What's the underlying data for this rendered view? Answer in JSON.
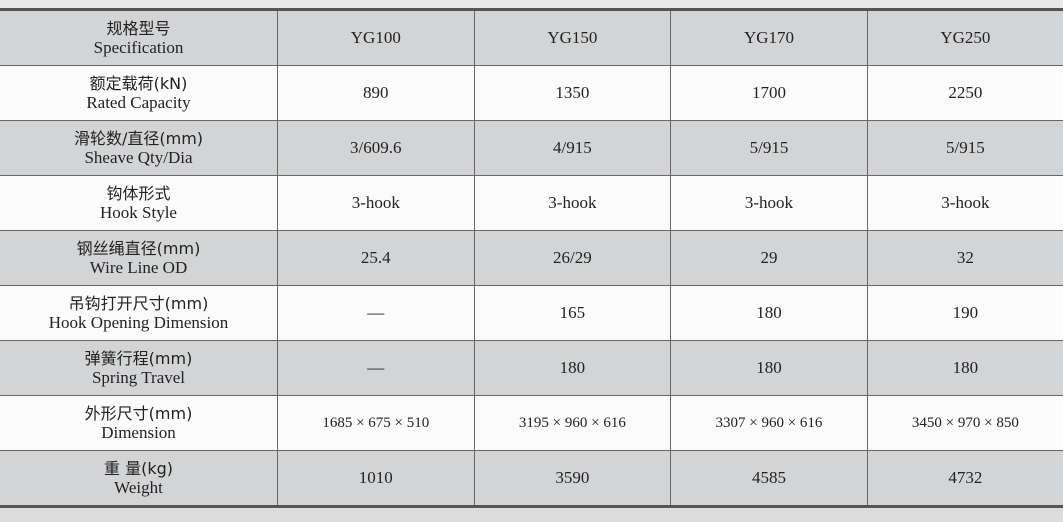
{
  "table": {
    "header": {
      "zh": "规格型号",
      "en": "Specification",
      "models": [
        "YG100",
        "YG150",
        "YG170",
        "YG250"
      ]
    },
    "rows": [
      {
        "zh": "额定载荷(kN)",
        "en": "Rated Capacity",
        "values": [
          "890",
          "1350",
          "1700",
          "2250"
        ]
      },
      {
        "zh": "滑轮数/直径(mm)",
        "en": "Sheave Qty/Dia",
        "values": [
          "3/609.6",
          "4/915",
          "5/915",
          "5/915"
        ]
      },
      {
        "zh": "钩体形式",
        "en": "Hook Style",
        "values": [
          "3-hook",
          "3-hook",
          "3-hook",
          "3-hook"
        ]
      },
      {
        "zh": "钢丝绳直径(mm)",
        "en": "Wire Line OD",
        "values": [
          "25.4",
          "26/29",
          "29",
          "32"
        ]
      },
      {
        "zh": "吊钩打开尺寸(mm)",
        "en": "Hook Opening Dimension",
        "values": [
          "—",
          "165",
          "180",
          "190"
        ]
      },
      {
        "zh": "弹簧行程(mm)",
        "en": "Spring Travel",
        "values": [
          "—",
          "180",
          "180",
          "180"
        ]
      },
      {
        "zh": "外形尺寸(mm)",
        "en": "Dimension",
        "values": [
          "1685 × 675 × 510",
          "3195 × 960 × 616",
          "3307 × 960 × 616",
          "3450 × 970 × 850"
        ]
      },
      {
        "zh": "重 量(kg)",
        "en": "Weight",
        "values": [
          "1010",
          "3590",
          "4585",
          "4732"
        ]
      }
    ]
  }
}
